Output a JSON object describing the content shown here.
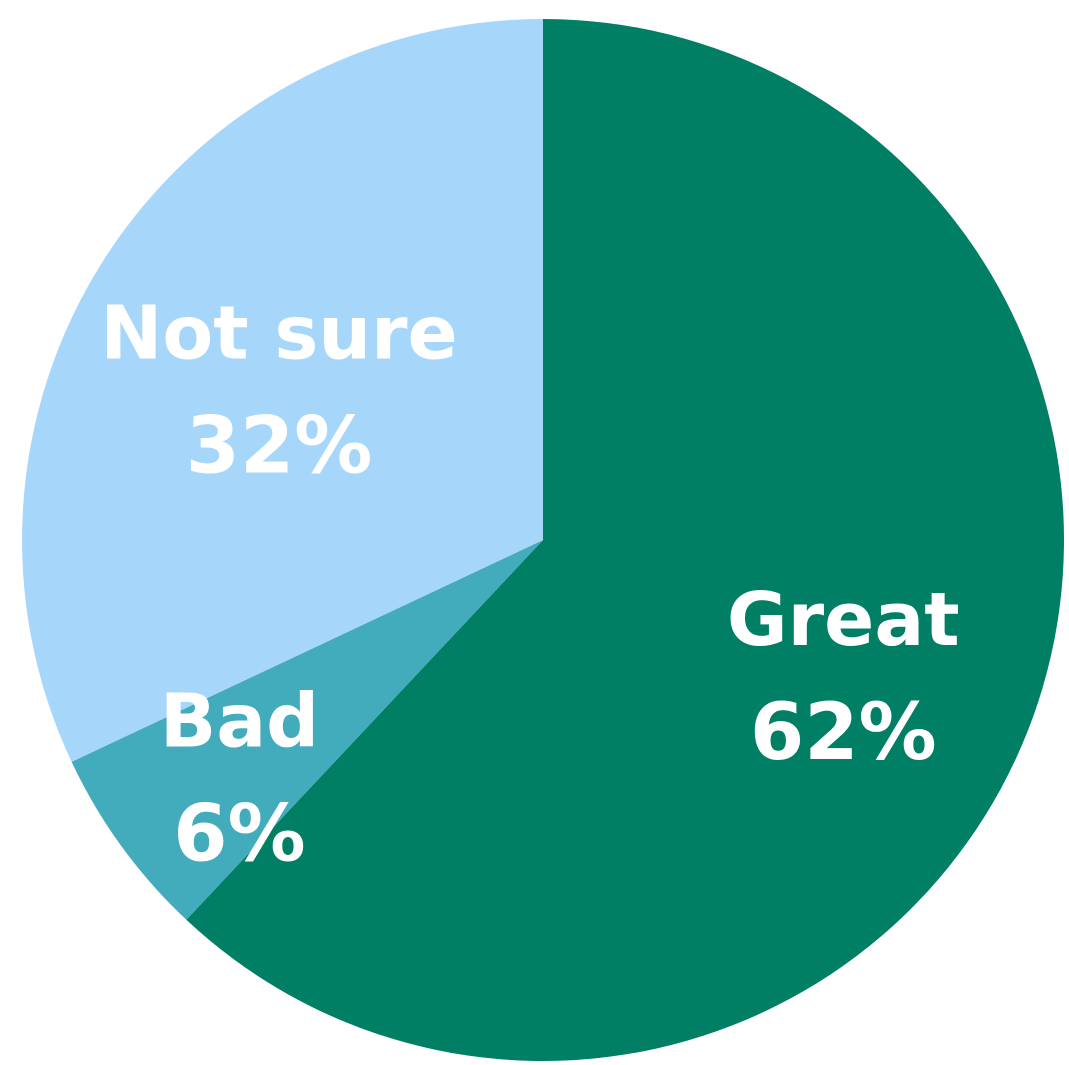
{
  "chart_data": {
    "type": "pie",
    "title": "",
    "start_angle_deg": 0,
    "direction": "clockwise",
    "legend": "none",
    "slices": [
      {
        "label": "Great",
        "value": 62,
        "value_label": "62%",
        "color": "#007f64"
      },
      {
        "label": "Bad",
        "value": 6,
        "value_label": "6%",
        "color": "#42abbc"
      },
      {
        "label": "Not sure",
        "value": 32,
        "value_label": "32%",
        "color": "#a7d6fb"
      }
    ]
  }
}
